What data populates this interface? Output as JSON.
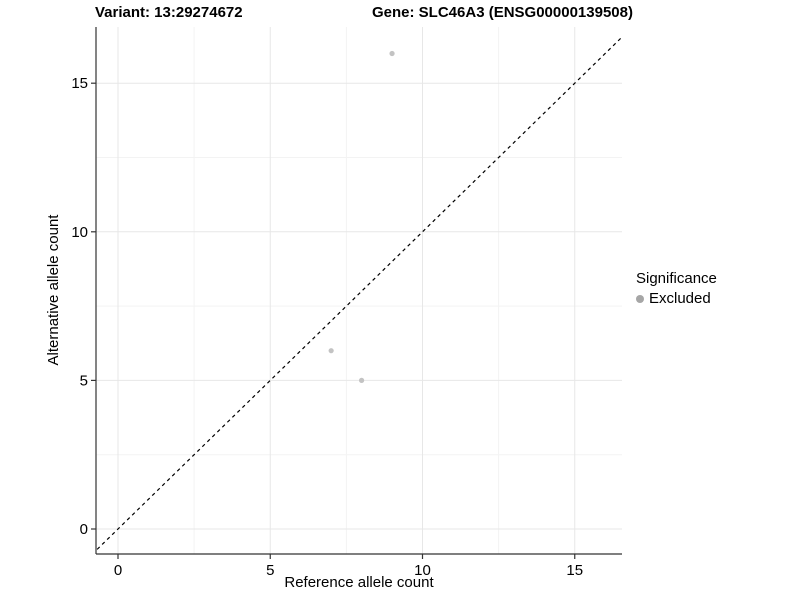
{
  "titles": {
    "variant": "Variant: 13:29274672",
    "gene": "Gene: SLC46A3 (ENSG00000139508)"
  },
  "legend": {
    "title": "Significance",
    "items": [
      {
        "label": "Excluded",
        "marker_color": "#a6a6a6"
      }
    ]
  },
  "style": {
    "background": "#ffffff",
    "text": "#000000",
    "axis_line": "#333333",
    "grid_major": "#e7e7e7",
    "grid_minor": "#f3f3f3",
    "point": "#c3c3c3",
    "ref_line": "#000000"
  },
  "chart_data": {
    "type": "scatter",
    "title": "Variant: 13:29274672   Gene: SLC46A3 (ENSG00000139508)",
    "xlabel": "Reference allele count",
    "ylabel": "Alternative allele count",
    "xlim": [
      -0.75,
      16.6
    ],
    "ylim": [
      -0.85,
      16.9
    ],
    "x_ticks": [
      0,
      5,
      10,
      15
    ],
    "y_ticks": [
      0,
      5,
      10,
      15
    ],
    "x_minor_ticks": [
      2.5,
      7.5,
      12.5
    ],
    "y_minor_ticks": [
      2.5,
      7.5,
      12.5
    ],
    "grid": true,
    "legend_position": "right",
    "legend_title": "Significance",
    "series": [
      {
        "name": "Excluded",
        "color": "#c3c3c3",
        "points": [
          {
            "x": 9,
            "y": 16
          },
          {
            "x": 7,
            "y": 6
          },
          {
            "x": 8,
            "y": 5
          }
        ]
      }
    ],
    "reference_line": {
      "slope": 1,
      "intercept": 0,
      "style": "dashed",
      "color": "#000000"
    }
  }
}
